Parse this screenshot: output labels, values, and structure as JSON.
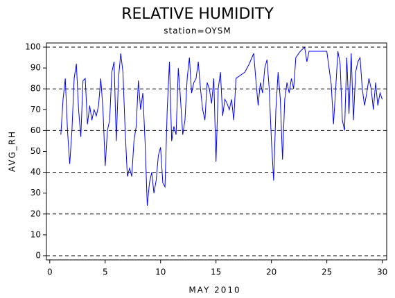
{
  "chart_data": {
    "type": "line",
    "title": "RELATIVE HUMIDITY",
    "subtitle": "station=OYSM",
    "x_label": "MAY 2010",
    "y_label": "AVG_RH",
    "xlim": [
      -0.3,
      30.4
    ],
    "ylim": [
      -2,
      102
    ],
    "xticks": [
      0,
      5,
      10,
      15,
      20,
      25,
      30
    ],
    "yticks": [
      0,
      10,
      20,
      30,
      40,
      50,
      60,
      70,
      80,
      90,
      100
    ],
    "grid_lines": [
      0,
      20,
      40,
      60,
      80,
      100
    ],
    "series": [
      {
        "name": "AVG_RH",
        "color": "#0000ff",
        "x": [
          1.0,
          1.2,
          1.4,
          1.6,
          1.8,
          2.0,
          2.2,
          2.4,
          2.6,
          2.8,
          3.0,
          3.2,
          3.4,
          3.6,
          3.8,
          4.0,
          4.2,
          4.4,
          4.6,
          4.8,
          5.0,
          5.2,
          5.4,
          5.6,
          5.8,
          6.0,
          6.2,
          6.4,
          6.6,
          6.8,
          7.0,
          7.2,
          7.4,
          7.6,
          7.8,
          8.0,
          8.2,
          8.4,
          8.6,
          8.8,
          9.0,
          9.2,
          9.4,
          9.6,
          9.8,
          10.0,
          10.2,
          10.4,
          10.6,
          10.8,
          11.0,
          11.2,
          11.4,
          11.6,
          11.8,
          12.0,
          12.2,
          12.4,
          12.6,
          12.8,
          13.0,
          13.2,
          13.4,
          13.6,
          13.8,
          14.0,
          14.2,
          14.4,
          14.6,
          14.8,
          15.0,
          15.2,
          15.4,
          15.6,
          15.8,
          16.0,
          16.2,
          16.4,
          16.6,
          16.8,
          17.6,
          18.0,
          18.4,
          18.6,
          18.8,
          19.0,
          19.2,
          19.4,
          19.6,
          19.8,
          20.0,
          20.2,
          20.4,
          20.6,
          20.8,
          21.0,
          21.2,
          21.4,
          21.6,
          21.8,
          22.0,
          22.2,
          22.6,
          23.0,
          23.2,
          23.4,
          25.0,
          25.4,
          25.6,
          25.8,
          26.0,
          26.2,
          26.4,
          26.6,
          26.8,
          27.0,
          27.2,
          27.4,
          27.6,
          27.8,
          28.0,
          28.2,
          28.4,
          28.6,
          28.8,
          29.0,
          29.2,
          29.4,
          29.6,
          29.8,
          30.0
        ],
        "values": [
          58,
          75,
          85,
          60,
          44,
          60,
          85,
          92,
          70,
          57,
          84,
          85,
          63,
          72,
          65,
          70,
          67,
          72,
          85,
          70,
          43,
          60,
          65,
          88,
          93,
          55,
          85,
          97,
          88,
          60,
          38,
          42,
          38,
          55,
          62,
          84,
          70,
          78,
          55,
          24,
          35,
          40,
          30,
          36,
          48,
          52,
          35,
          33,
          70,
          93,
          55,
          62,
          58,
          90,
          75,
          58,
          65,
          85,
          95,
          78,
          83,
          85,
          93,
          80,
          70,
          65,
          83,
          80,
          73,
          85,
          45,
          80,
          88,
          67,
          75,
          73,
          70,
          75,
          65,
          85,
          88,
          92,
          97,
          84,
          72,
          83,
          78,
          90,
          94,
          80,
          55,
          36,
          70,
          88,
          75,
          46,
          75,
          83,
          78,
          85,
          80,
          95,
          98,
          100,
          93,
          98,
          98,
          82,
          63,
          80,
          98,
          92,
          65,
          60,
          95,
          68,
          97,
          65,
          88,
          93,
          95,
          80,
          72,
          78,
          85,
          80,
          70,
          83,
          72,
          78,
          75
        ]
      }
    ]
  }
}
